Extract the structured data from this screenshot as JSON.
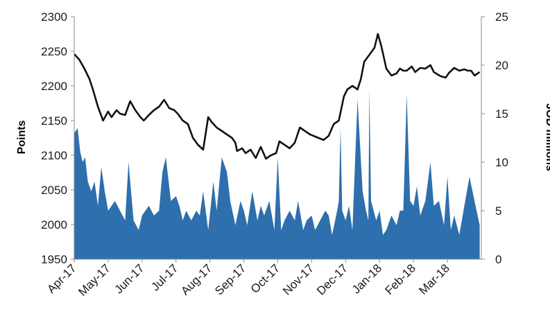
{
  "chart_data": {
    "type": "area",
    "title": "",
    "xlabel": "",
    "ylabel_left": "Points",
    "ylabel_right": "JOD millions",
    "x_ticks": [
      "Apr-17",
      "May-17",
      "Jun-17",
      "Jul-17",
      "Aug-17",
      "Sep-17",
      "Oct-17",
      "Nov-17",
      "Dec-17",
      "Jan-18",
      "Feb-18",
      "Mar-18"
    ],
    "ylim_left": [
      1950,
      2300
    ],
    "yticks_left": [
      1950,
      2000,
      2050,
      2100,
      2150,
      2200,
      2250,
      2300
    ],
    "ylim_right": [
      0,
      25
    ],
    "yticks_right": [
      0,
      5,
      10,
      15,
      20,
      25
    ],
    "grid": false,
    "legend": "none",
    "colors": {
      "volume": "#2e6fad",
      "index": "#111111"
    },
    "series": [
      {
        "axis": "right",
        "style": "area",
        "x": [
          0.0,
          0.1,
          0.18,
          0.25,
          0.32,
          0.4,
          0.5,
          0.6,
          0.7,
          0.8,
          0.9,
          1.0,
          1.1,
          1.2,
          1.35,
          1.5,
          1.6,
          1.75,
          1.9,
          2.0,
          2.1,
          2.2,
          2.35,
          2.5,
          2.6,
          2.7,
          2.85,
          3.0,
          3.1,
          3.2,
          3.3,
          3.45,
          3.6,
          3.7,
          3.8,
          3.95,
          4.1,
          4.2,
          4.35,
          4.5,
          4.6,
          4.75,
          4.9,
          5.0,
          5.1,
          5.25,
          5.4,
          5.5,
          5.6,
          5.75,
          5.9,
          6.0,
          6.1,
          6.2,
          6.35,
          6.5,
          6.6,
          6.75,
          6.85,
          7.0,
          7.1,
          7.25,
          7.4,
          7.5,
          7.6,
          7.75,
          7.8,
          7.85,
          7.9,
          8.0,
          8.1,
          8.2,
          8.35,
          8.5,
          8.6,
          8.67,
          8.7,
          8.75,
          8.9,
          9.0,
          9.1,
          9.2,
          9.35,
          9.5,
          9.6,
          9.7,
          9.8,
          9.9,
          10.0,
          10.1,
          10.2,
          10.35,
          10.5,
          10.6,
          10.75,
          10.9,
          11.0,
          11.1,
          11.2,
          11.35,
          11.5,
          11.65,
          11.8,
          11.95
        ],
        "values": [
          13,
          13.5,
          11,
          10,
          10.5,
          8,
          7,
          8,
          5.5,
          9.5,
          7,
          5,
          5.5,
          6,
          5,
          4,
          10,
          4,
          3,
          4.5,
          5,
          5.5,
          4.5,
          5,
          9,
          10.5,
          6,
          6.5,
          5.5,
          4,
          5,
          4,
          5,
          4.5,
          7,
          3,
          8,
          5,
          10.5,
          9,
          6,
          3.5,
          6,
          5,
          3.5,
          7,
          4,
          5.5,
          4.5,
          6,
          3,
          10.5,
          3,
          4,
          5,
          4,
          6,
          3,
          4,
          4.5,
          3,
          4,
          5,
          4.5,
          2.5,
          5,
          6,
          13.5,
          5,
          4,
          5.5,
          3,
          16.5,
          7,
          5,
          4,
          17.5,
          6,
          4,
          5,
          2.5,
          3,
          4.5,
          3.5,
          5,
          5,
          17,
          6,
          5.5,
          7.5,
          4.5,
          6,
          10,
          5.5,
          6,
          3.5,
          8.5,
          3,
          4.5,
          2.5,
          5.5,
          8.5,
          6,
          3.5
        ]
      },
      {
        "axis": "left",
        "style": "line",
        "x": [
          0.0,
          0.15,
          0.3,
          0.45,
          0.55,
          0.7,
          0.85,
          1.0,
          1.1,
          1.25,
          1.35,
          1.5,
          1.65,
          1.8,
          1.95,
          2.05,
          2.2,
          2.35,
          2.5,
          2.65,
          2.8,
          2.95,
          3.05,
          3.2,
          3.35,
          3.5,
          3.65,
          3.8,
          3.95,
          4.05,
          4.2,
          4.35,
          4.5,
          4.65,
          4.75,
          4.8,
          4.95,
          5.05,
          5.2,
          5.35,
          5.5,
          5.65,
          5.8,
          5.95,
          6.05,
          6.2,
          6.35,
          6.5,
          6.65,
          6.8,
          6.95,
          7.05,
          7.2,
          7.35,
          7.5,
          7.65,
          7.8,
          7.95,
          8.05,
          8.2,
          8.35,
          8.45,
          8.55,
          8.7,
          8.85,
          8.95,
          9.05,
          9.2,
          9.35,
          9.5,
          9.6,
          9.7,
          9.8,
          9.95,
          10.05,
          10.2,
          10.35,
          10.5,
          10.6,
          10.7,
          10.8,
          10.95,
          11.05,
          11.2,
          11.35,
          11.5,
          11.6,
          11.7,
          11.8,
          11.95
        ],
        "values": [
          2246,
          2238,
          2225,
          2210,
          2195,
          2170,
          2150,
          2163,
          2155,
          2165,
          2160,
          2158,
          2178,
          2165,
          2155,
          2150,
          2158,
          2165,
          2170,
          2180,
          2168,
          2165,
          2160,
          2150,
          2145,
          2125,
          2115,
          2108,
          2155,
          2148,
          2140,
          2135,
          2130,
          2125,
          2118,
          2106,
          2110,
          2103,
          2108,
          2096,
          2112,
          2095,
          2100,
          2103,
          2120,
          2115,
          2110,
          2118,
          2140,
          2135,
          2130,
          2128,
          2125,
          2122,
          2128,
          2145,
          2150,
          2185,
          2195,
          2200,
          2195,
          2210,
          2235,
          2245,
          2255,
          2275,
          2258,
          2225,
          2215,
          2218,
          2225,
          2222,
          2222,
          2228,
          2220,
          2226,
          2225,
          2230,
          2220,
          2217,
          2214,
          2212,
          2219,
          2226,
          2222,
          2224,
          2222,
          2222,
          2215,
          2220
        ]
      }
    ]
  }
}
